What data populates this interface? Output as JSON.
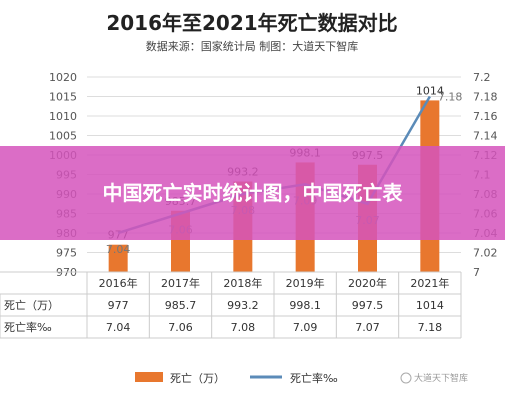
{
  "header": {
    "title": "2016年至2021年死亡数据对比",
    "source": "数据来源：国家统计局     制图：大道天下智库"
  },
  "chart_data": {
    "type": "bar",
    "categories": [
      "2016年",
      "2017年",
      "2018年",
      "2019年",
      "2020年",
      "2021年"
    ],
    "series": [
      {
        "name": "死亡（万）",
        "type": "bar",
        "axis": "left",
        "values": [
          977,
          985.7,
          993.2,
          998.1,
          997.5,
          1014
        ],
        "labels": [
          "977",
          "985.7",
          "993.2",
          "998.1",
          "997.5",
          "1014"
        ]
      },
      {
        "name": "死亡率‰",
        "type": "line",
        "axis": "right",
        "values": [
          7.04,
          7.06,
          7.08,
          7.09,
          7.07,
          7.18
        ],
        "labels": [
          "7.04",
          "7.06",
          "7.08",
          "7.09",
          "7.07",
          "7.18"
        ]
      }
    ],
    "y_left": {
      "ylim": [
        970,
        1020
      ],
      "ticks": [
        "1020",
        "1015",
        "1010",
        "1005",
        "1000",
        "995",
        "990",
        "985",
        "980",
        "975",
        "970"
      ]
    },
    "y_right": {
      "ylim": [
        7.0,
        7.2
      ],
      "ticks": [
        "7.2",
        "7.18",
        "7.16",
        "7.14",
        "7.12",
        "7.1",
        "7.08",
        "7.06",
        "7.04",
        "7.02",
        "7"
      ]
    },
    "grid": true,
    "legend": "bottom",
    "colors": {
      "bar": "#e8772e",
      "line": "#5b8bb8"
    }
  },
  "table": {
    "row_headers": [
      "死亡（万）",
      "死亡率‰"
    ]
  },
  "legend": {
    "bar_label": "死亡（万）",
    "line_label": "死亡率‰"
  },
  "banner": {
    "text": "中国死亡实时统计图，中国死亡表"
  },
  "watermark": {
    "text": "大道天下智库"
  }
}
